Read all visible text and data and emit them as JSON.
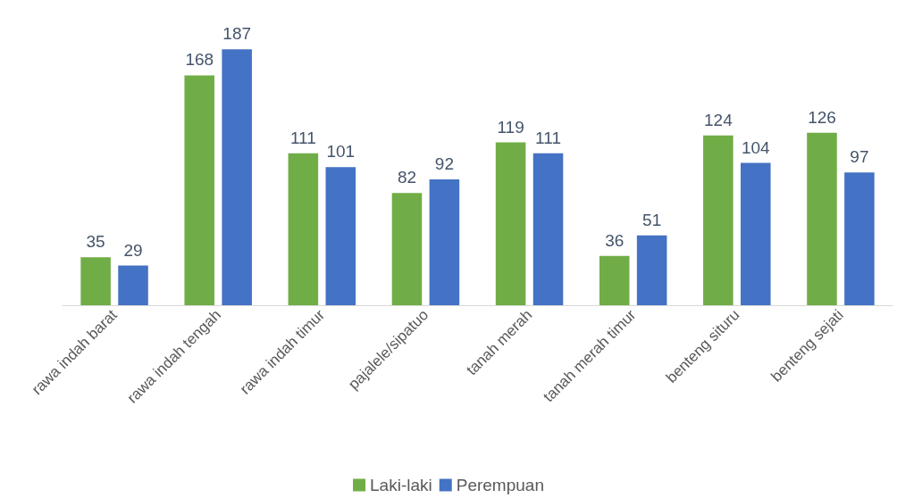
{
  "chart_data": {
    "type": "bar",
    "categories": [
      "rawa indah barat",
      "rawa indah tengah",
      "rawa indah timur",
      "pajalele/sipatuo",
      "tanah merah",
      "tanah merah timur",
      "benteng situru",
      "benteng sejati"
    ],
    "series": [
      {
        "name": "Laki-laki",
        "color": "#70ad47",
        "values": [
          35,
          168,
          111,
          82,
          119,
          36,
          124,
          126
        ]
      },
      {
        "name": "Perempuan",
        "color": "#4472c4",
        "values": [
          29,
          187,
          101,
          92,
          111,
          51,
          104,
          97
        ]
      }
    ],
    "data_labels": true,
    "legend": "bottom"
  }
}
